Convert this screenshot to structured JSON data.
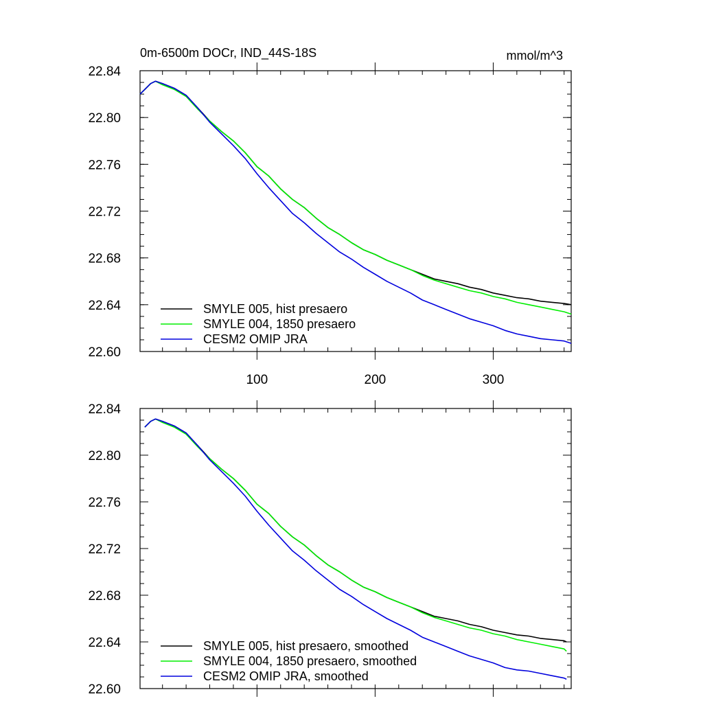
{
  "colors": {
    "smyle005": "#000000",
    "smyle004": "#00ee00",
    "omip": "#0000dd"
  },
  "chart_data": [
    {
      "type": "line",
      "title": "0m-6500m DOCr, IND_44S-18S",
      "units": "mmol/m^3",
      "xlim": [
        1,
        366
      ],
      "ylim": [
        22.6,
        22.84
      ],
      "x_ticks": [
        "100",
        "200",
        "300"
      ],
      "y_ticks": [
        "22.84",
        "22.80",
        "22.76",
        "22.72",
        "22.68",
        "22.64",
        "22.60"
      ],
      "x_ticklabels_visible": true,
      "series": [
        {
          "name": "SMYLE 005, hist presaero",
          "color": "smyle005",
          "points": [
            [
              1,
              22.82
            ],
            [
              5,
              22.824
            ],
            [
              10,
              22.829
            ],
            [
              14,
              22.831
            ],
            [
              20,
              22.829
            ],
            [
              30,
              22.825
            ],
            [
              40,
              22.819
            ],
            [
              50,
              22.808
            ],
            [
              60,
              22.797
            ],
            [
              70,
              22.788
            ],
            [
              80,
              22.78
            ],
            [
              90,
              22.77
            ],
            [
              100,
              22.758
            ],
            [
              110,
              22.75
            ],
            [
              120,
              22.739
            ],
            [
              130,
              22.73
            ],
            [
              140,
              22.723
            ],
            [
              150,
              22.714
            ],
            [
              160,
              22.706
            ],
            [
              170,
              22.7
            ],
            [
              180,
              22.693
            ],
            [
              190,
              22.687
            ],
            [
              200,
              22.683
            ],
            [
              210,
              22.678
            ],
            [
              220,
              22.674
            ],
            [
              230,
              22.67
            ],
            [
              240,
              22.666
            ],
            [
              250,
              22.662
            ],
            [
              260,
              22.66
            ],
            [
              270,
              22.658
            ],
            [
              280,
              22.655
            ],
            [
              290,
              22.653
            ],
            [
              300,
              22.65
            ],
            [
              310,
              22.648
            ],
            [
              320,
              22.646
            ],
            [
              330,
              22.645
            ],
            [
              340,
              22.643
            ],
            [
              350,
              22.642
            ],
            [
              360,
              22.641
            ],
            [
              366,
              22.64
            ]
          ]
        },
        {
          "name": "SMYLE 004, 1850 presaero",
          "color": "smyle004",
          "points": [
            [
              1,
              22.82
            ],
            [
              5,
              22.824
            ],
            [
              10,
              22.829
            ],
            [
              14,
              22.831
            ],
            [
              20,
              22.828
            ],
            [
              30,
              22.824
            ],
            [
              40,
              22.818
            ],
            [
              50,
              22.807
            ],
            [
              60,
              22.797
            ],
            [
              70,
              22.788
            ],
            [
              80,
              22.78
            ],
            [
              90,
              22.77
            ],
            [
              100,
              22.758
            ],
            [
              110,
              22.75
            ],
            [
              120,
              22.739
            ],
            [
              130,
              22.73
            ],
            [
              140,
              22.723
            ],
            [
              150,
              22.714
            ],
            [
              160,
              22.706
            ],
            [
              170,
              22.7
            ],
            [
              180,
              22.693
            ],
            [
              190,
              22.687
            ],
            [
              200,
              22.683
            ],
            [
              210,
              22.678
            ],
            [
              220,
              22.674
            ],
            [
              230,
              22.67
            ],
            [
              240,
              22.665
            ],
            [
              250,
              22.661
            ],
            [
              260,
              22.658
            ],
            [
              270,
              22.655
            ],
            [
              280,
              22.652
            ],
            [
              290,
              22.65
            ],
            [
              300,
              22.647
            ],
            [
              310,
              22.645
            ],
            [
              320,
              22.642
            ],
            [
              330,
              22.64
            ],
            [
              340,
              22.638
            ],
            [
              350,
              22.636
            ],
            [
              360,
              22.634
            ],
            [
              366,
              22.632
            ]
          ]
        },
        {
          "name": "CESM2 OMIP JRA",
          "color": "omip",
          "points": [
            [
              1,
              22.82
            ],
            [
              5,
              22.824
            ],
            [
              10,
              22.829
            ],
            [
              14,
              22.831
            ],
            [
              20,
              22.829
            ],
            [
              30,
              22.825
            ],
            [
              40,
              22.819
            ],
            [
              50,
              22.808
            ],
            [
              60,
              22.796
            ],
            [
              70,
              22.786
            ],
            [
              80,
              22.776
            ],
            [
              90,
              22.765
            ],
            [
              100,
              22.752
            ],
            [
              110,
              22.74
            ],
            [
              120,
              22.729
            ],
            [
              130,
              22.718
            ],
            [
              140,
              22.71
            ],
            [
              150,
              22.701
            ],
            [
              160,
              22.693
            ],
            [
              170,
              22.685
            ],
            [
              180,
              22.679
            ],
            [
              190,
              22.672
            ],
            [
              200,
              22.666
            ],
            [
              210,
              22.66
            ],
            [
              220,
              22.655
            ],
            [
              230,
              22.65
            ],
            [
              240,
              22.644
            ],
            [
              250,
              22.64
            ],
            [
              260,
              22.636
            ],
            [
              270,
              22.632
            ],
            [
              280,
              22.628
            ],
            [
              290,
              22.625
            ],
            [
              300,
              22.622
            ],
            [
              310,
              22.618
            ],
            [
              320,
              22.615
            ],
            [
              330,
              22.613
            ],
            [
              340,
              22.611
            ],
            [
              350,
              22.61
            ],
            [
              360,
              22.609
            ],
            [
              366,
              22.607
            ]
          ]
        }
      ]
    },
    {
      "type": "line",
      "title": "",
      "units": "",
      "xlim": [
        1,
        366
      ],
      "ylim": [
        22.6,
        22.84
      ],
      "x_ticks": [
        "100",
        "200",
        "300"
      ],
      "y_ticks": [
        "22.84",
        "22.80",
        "22.76",
        "22.72",
        "22.68",
        "22.64",
        "22.60"
      ],
      "x_ticklabels_visible": false,
      "series": [
        {
          "name": "SMYLE 005, hist presaero, smoothed",
          "color": "smyle005",
          "points": [
            [
              5,
              22.824
            ],
            [
              10,
              22.829
            ],
            [
              14,
              22.831
            ],
            [
              20,
              22.829
            ],
            [
              30,
              22.825
            ],
            [
              40,
              22.819
            ],
            [
              50,
              22.808
            ],
            [
              60,
              22.797
            ],
            [
              70,
              22.788
            ],
            [
              80,
              22.78
            ],
            [
              90,
              22.77
            ],
            [
              100,
              22.758
            ],
            [
              110,
              22.75
            ],
            [
              120,
              22.739
            ],
            [
              130,
              22.73
            ],
            [
              140,
              22.723
            ],
            [
              150,
              22.714
            ],
            [
              160,
              22.706
            ],
            [
              170,
              22.7
            ],
            [
              180,
              22.693
            ],
            [
              190,
              22.687
            ],
            [
              200,
              22.683
            ],
            [
              210,
              22.678
            ],
            [
              220,
              22.674
            ],
            [
              230,
              22.67
            ],
            [
              240,
              22.666
            ],
            [
              250,
              22.662
            ],
            [
              260,
              22.66
            ],
            [
              270,
              22.658
            ],
            [
              280,
              22.655
            ],
            [
              290,
              22.653
            ],
            [
              300,
              22.65
            ],
            [
              310,
              22.648
            ],
            [
              320,
              22.646
            ],
            [
              330,
              22.645
            ],
            [
              340,
              22.643
            ],
            [
              350,
              22.642
            ],
            [
              360,
              22.641
            ],
            [
              362,
              22.64
            ]
          ]
        },
        {
          "name": "SMYLE 004, 1850 presaero, smoothed",
          "color": "smyle004",
          "points": [
            [
              5,
              22.824
            ],
            [
              10,
              22.829
            ],
            [
              14,
              22.831
            ],
            [
              20,
              22.828
            ],
            [
              30,
              22.824
            ],
            [
              40,
              22.818
            ],
            [
              50,
              22.807
            ],
            [
              60,
              22.797
            ],
            [
              70,
              22.788
            ],
            [
              80,
              22.78
            ],
            [
              90,
              22.77
            ],
            [
              100,
              22.758
            ],
            [
              110,
              22.75
            ],
            [
              120,
              22.739
            ],
            [
              130,
              22.73
            ],
            [
              140,
              22.723
            ],
            [
              150,
              22.714
            ],
            [
              160,
              22.706
            ],
            [
              170,
              22.7
            ],
            [
              180,
              22.693
            ],
            [
              190,
              22.687
            ],
            [
              200,
              22.683
            ],
            [
              210,
              22.678
            ],
            [
              220,
              22.674
            ],
            [
              230,
              22.67
            ],
            [
              240,
              22.665
            ],
            [
              250,
              22.661
            ],
            [
              260,
              22.658
            ],
            [
              270,
              22.655
            ],
            [
              280,
              22.652
            ],
            [
              290,
              22.65
            ],
            [
              300,
              22.647
            ],
            [
              310,
              22.645
            ],
            [
              320,
              22.642
            ],
            [
              330,
              22.64
            ],
            [
              340,
              22.638
            ],
            [
              350,
              22.636
            ],
            [
              360,
              22.634
            ],
            [
              362,
              22.632
            ]
          ]
        },
        {
          "name": "CESM2 OMIP JRA, smoothed",
          "color": "omip",
          "points": [
            [
              5,
              22.824
            ],
            [
              10,
              22.829
            ],
            [
              14,
              22.831
            ],
            [
              20,
              22.829
            ],
            [
              30,
              22.825
            ],
            [
              40,
              22.819
            ],
            [
              50,
              22.808
            ],
            [
              60,
              22.796
            ],
            [
              70,
              22.786
            ],
            [
              80,
              22.776
            ],
            [
              90,
              22.765
            ],
            [
              100,
              22.752
            ],
            [
              110,
              22.74
            ],
            [
              120,
              22.729
            ],
            [
              130,
              22.718
            ],
            [
              140,
              22.71
            ],
            [
              150,
              22.701
            ],
            [
              160,
              22.693
            ],
            [
              170,
              22.685
            ],
            [
              180,
              22.679
            ],
            [
              190,
              22.672
            ],
            [
              200,
              22.666
            ],
            [
              210,
              22.66
            ],
            [
              220,
              22.655
            ],
            [
              230,
              22.65
            ],
            [
              240,
              22.644
            ],
            [
              250,
              22.64
            ],
            [
              260,
              22.636
            ],
            [
              270,
              22.632
            ],
            [
              280,
              22.628
            ],
            [
              290,
              22.625
            ],
            [
              300,
              22.622
            ],
            [
              310,
              22.618
            ],
            [
              320,
              22.616
            ],
            [
              330,
              22.615
            ],
            [
              340,
              22.613
            ],
            [
              350,
              22.611
            ],
            [
              360,
              22.609
            ],
            [
              362,
              22.608
            ]
          ]
        }
      ]
    }
  ]
}
